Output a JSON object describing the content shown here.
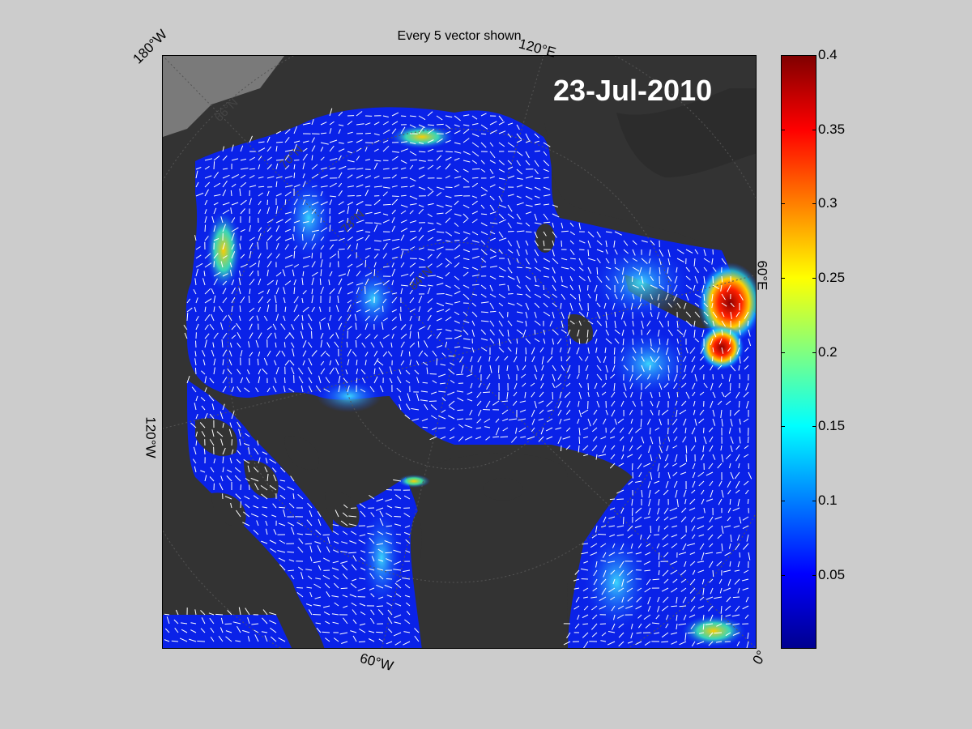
{
  "figure": {
    "title": "Every 5 vector shown",
    "date": "23-Jul-2010"
  },
  "axes": {
    "lon_labels": [
      "180°W",
      "120°E",
      "60°E",
      "120°W",
      "60°W",
      "0°"
    ],
    "lat_labels": [
      "66°N",
      "70°N",
      "78°N",
      "84°N"
    ]
  },
  "colorbar": {
    "range": [
      0,
      0.4
    ],
    "ticks": [
      "0.4",
      "0.35",
      "0.3",
      "0.25",
      "0.2",
      "0.15",
      "0.1",
      "0.05"
    ],
    "colormap": "jet"
  },
  "colors": {
    "background": "#cccccc",
    "land": "#333333",
    "land_light": "#888888",
    "ocean_low": "#0a1ee6",
    "vector": "#ffffff",
    "grid": "#555555"
  }
}
